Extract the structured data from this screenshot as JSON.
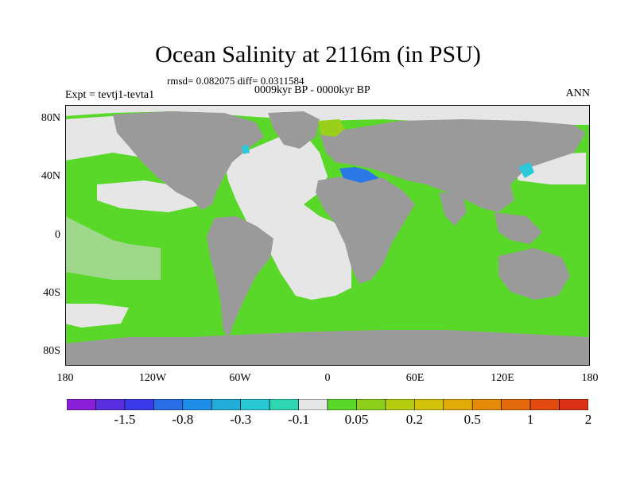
{
  "map": {
    "title": "Ocean Salinity at 2116m (in PSU)",
    "stats": "rmsd= 0.082075 diff= 0.0311584",
    "subtitle": "0009kyr BP - 0000kyr BP",
    "experiment": "Expt = tevtj1-tevta1",
    "season": "ANN",
    "lat_ticks": [
      "80N",
      "40N",
      "0",
      "40S",
      "80S"
    ],
    "lon_ticks": [
      "180",
      "120W",
      "60W",
      "0",
      "60E",
      "120E",
      "180"
    ]
  },
  "colorbar": {
    "colors": [
      "#8a1fd8",
      "#5a2fe0",
      "#3a3ae8",
      "#2a6ee6",
      "#1f8ee8",
      "#22acd8",
      "#28c8d4",
      "#2ed6b2",
      "#e6e6e6",
      "#5ad82a",
      "#8cd01c",
      "#b4cc10",
      "#d2c30a",
      "#e0aa08",
      "#e48a08",
      "#e46a0c",
      "#e24a10",
      "#dc3016"
    ],
    "labels": [
      "-1.5",
      "-0.8",
      "-0.3",
      "-0.1",
      "0.05",
      "0.2",
      "0.5",
      "1",
      "2"
    ]
  },
  "legend_colors": {
    "land": "#9a9a9a",
    "missing": "#e6e6e6",
    "green": "#5ad82a",
    "lime": "#9ad01c",
    "cyan": "#2ac8d8",
    "blue": "#2a78e8"
  }
}
